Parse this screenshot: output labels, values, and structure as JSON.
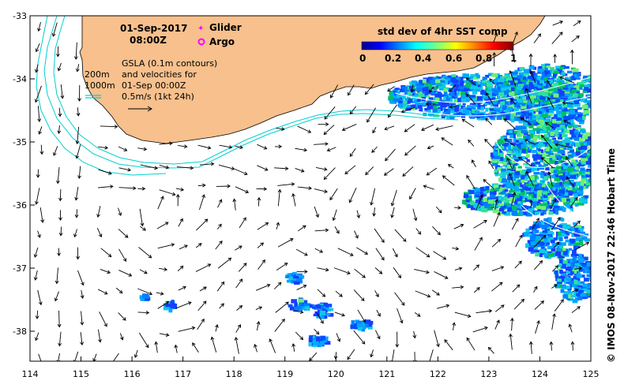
{
  "header": {
    "date": "01-Sep-2017",
    "time": "08:00Z"
  },
  "legend": {
    "glider": "Glider",
    "argo": "Argo",
    "glider_color": "#ff00ff",
    "argo_color": "#ff00ff"
  },
  "colorbar": {
    "title": "std dev of 4hr SST comp",
    "ticks": [
      "0",
      "0.2",
      "0.4",
      "0.6",
      "0.8",
      "1"
    ]
  },
  "annotation": {
    "line1": "GSLA (0.1m contours)",
    "line2": "and velocities for",
    "line3": "01-Sep 00:00Z",
    "line4": "0.5m/s (1kt 24h)"
  },
  "bathy": {
    "label_200": "200m",
    "label_1000": "1000m"
  },
  "axes": {
    "x_ticks": [
      "114",
      "115",
      "116",
      "117",
      "118",
      "119",
      "120",
      "121",
      "122",
      "123",
      "124",
      "125"
    ],
    "y_ticks": [
      "-33",
      "-34",
      "-35",
      "-36",
      "-37",
      "-38"
    ]
  },
  "credit": "© IMOS 08-Nov-2017 22:46 Hobart Time",
  "colors": {
    "land": "#f7c08d",
    "bathy": "#00d0d0",
    "background": "#ffffff"
  }
}
